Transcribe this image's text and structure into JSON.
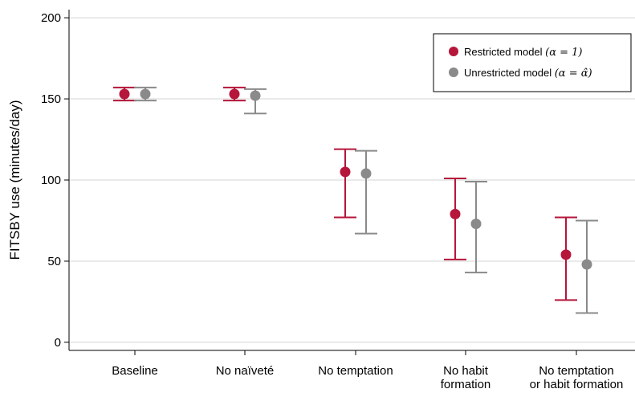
{
  "chart_data": {
    "type": "scatter",
    "subtype": "point-with-error-bars",
    "ylabel": "FITSBY use (minutes/day)",
    "xlabel": "",
    "ylim": [
      -5,
      205
    ],
    "yticks": [
      0,
      50,
      100,
      150,
      200
    ],
    "grid": true,
    "categories": [
      [
        "Baseline"
      ],
      [
        "No naïveté"
      ],
      [
        "No temptation"
      ],
      [
        "No habit",
        "formation"
      ],
      [
        "No temptation",
        "or habit formation"
      ]
    ],
    "series": [
      {
        "name": "Restricted model",
        "name_math": "(α = 1)",
        "color": "#B5163A",
        "values": [
          153,
          153,
          105,
          79,
          54
        ],
        "lower": [
          149,
          149,
          77,
          51,
          26
        ],
        "upper": [
          157,
          157,
          119,
          101,
          77
        ]
      },
      {
        "name": "Unrestricted model",
        "name_math": "(α = α̂)",
        "color": "#8A8A8A",
        "values": [
          153,
          152,
          104,
          73,
          48
        ],
        "lower": [
          149,
          141,
          67,
          43,
          18
        ],
        "upper": [
          157,
          156,
          118,
          99,
          75
        ]
      }
    ],
    "legend_position": "top-right"
  }
}
